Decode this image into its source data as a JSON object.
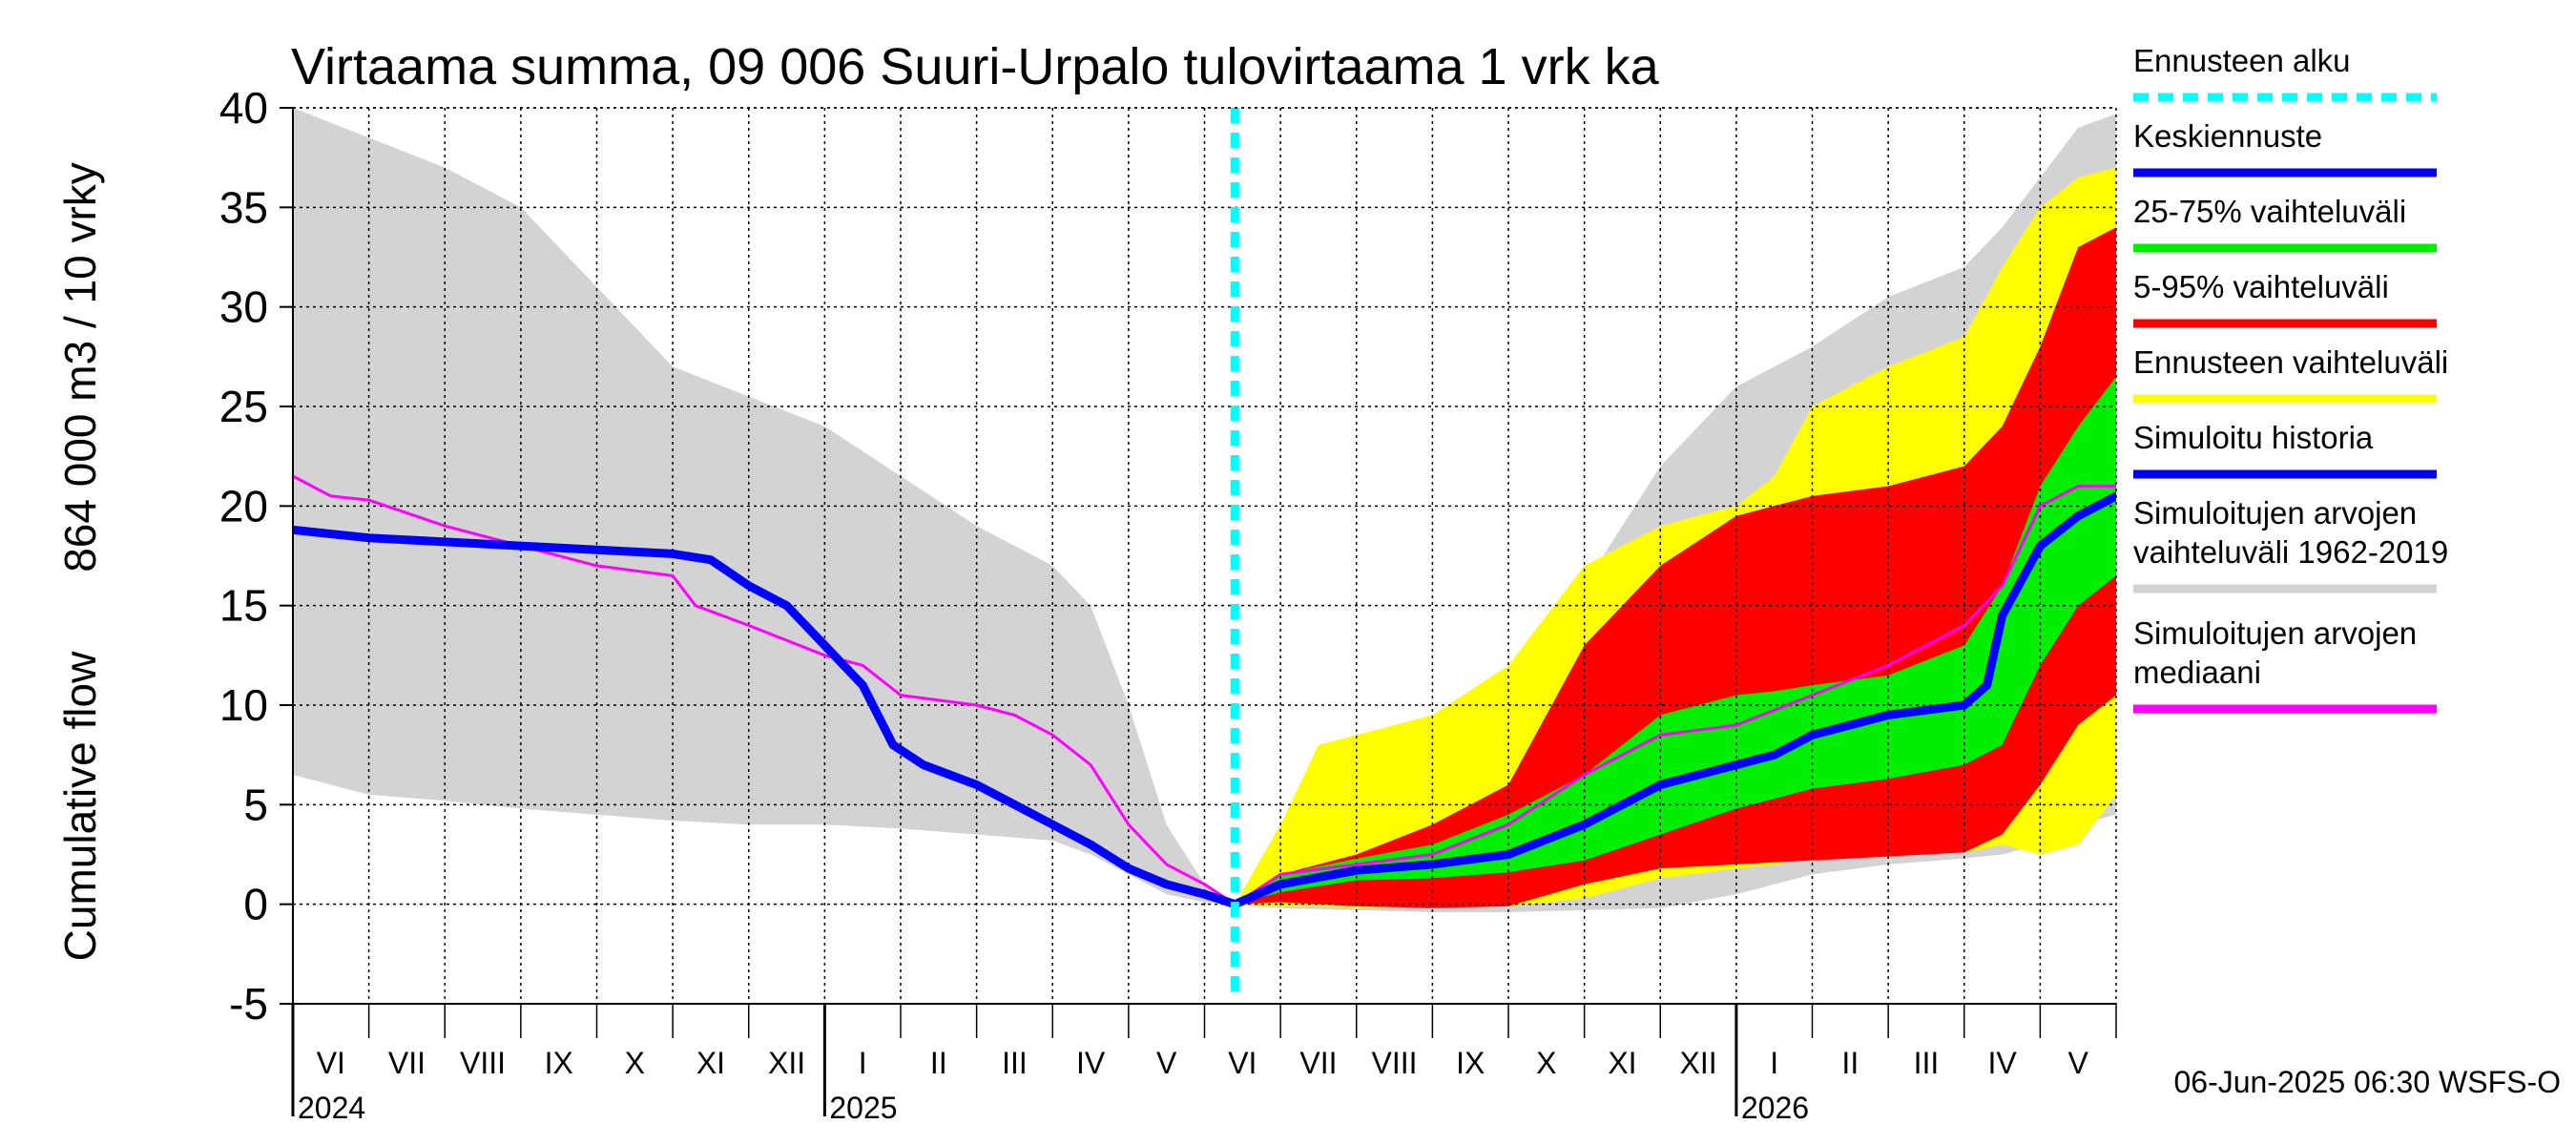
{
  "chart_data": {
    "type": "area",
    "title": "Virtaama summa, 09 006 Suuri-Urpalo tulovirtaama 1 vrk ka",
    "ylabel_line1": "Cumulative flow",
    "ylabel_line2": "864 000 m3 / 10 vrky",
    "ylim": [
      -5,
      40
    ],
    "yticks": [
      "-5",
      "0",
      "5",
      "10",
      "15",
      "20",
      "25",
      "30",
      "35",
      "40"
    ],
    "ytick_values": [
      -5,
      0,
      5,
      10,
      15,
      20,
      25,
      30,
      35,
      40
    ],
    "xlim": [
      0,
      24
    ],
    "forecast_start": 12.4,
    "months": [
      "VI",
      "VII",
      "VIII",
      "IX",
      "X",
      "XI",
      "XII",
      "I",
      "II",
      "III",
      "IV",
      "V",
      "VI",
      "VII",
      "VIII",
      "IX",
      "X",
      "XI",
      "XII",
      "I",
      "II",
      "III",
      "IV",
      "V"
    ],
    "years": [
      {
        "label": "2024",
        "x": 0
      },
      {
        "label": "2025",
        "x": 7
      },
      {
        "label": "2026",
        "x": 19
      }
    ],
    "grid": true,
    "legend_position": "right",
    "series": [
      {
        "name": "Simuloitujen arvojen vaihteluväli 1962-2019",
        "kind": "band",
        "color": "#d3d3d3",
        "x": [
          0,
          1,
          2,
          3,
          4,
          5,
          6,
          7,
          8,
          9,
          10,
          10.5,
          11,
          11.5,
          12,
          12.4,
          13,
          14,
          15,
          16,
          17,
          18,
          19,
          20,
          21,
          22,
          22.5,
          23,
          23.5,
          24
        ],
        "upper": [
          40,
          38.5,
          37,
          35,
          31,
          27,
          25.5,
          24,
          21.5,
          19,
          17,
          15,
          10,
          4,
          1,
          0,
          4,
          7.5,
          9,
          10.5,
          16,
          22,
          26,
          28,
          30.5,
          32,
          34,
          36.5,
          39,
          39.7
        ],
        "lower": [
          6.5,
          5.5,
          5.2,
          4.8,
          4.5,
          4.2,
          4,
          4,
          3.8,
          3.5,
          3.2,
          2.5,
          1.5,
          0.5,
          0.1,
          0,
          -0.2,
          -0.3,
          -0.4,
          -0.4,
          -0.3,
          -0.2,
          0.5,
          1.5,
          2,
          2.3,
          2.5,
          3,
          4,
          4.5
        ]
      },
      {
        "name": "Ennusteen vaihteluväli",
        "kind": "band",
        "color": "#ffff00",
        "x": [
          12.4,
          13,
          13.5,
          14,
          15,
          16,
          17,
          18,
          19,
          19.5,
          20,
          21,
          22,
          22.5,
          23,
          23.5,
          24
        ],
        "upper": [
          0,
          4,
          8,
          8.5,
          9.5,
          12,
          17,
          19,
          20,
          21.5,
          25,
          27,
          28.5,
          32,
          35,
          36.5,
          37
        ],
        "lower": [
          0,
          -0.1,
          -0.1,
          -0.2,
          -0.2,
          -0.1,
          0.3,
          1.3,
          1.8,
          2,
          2.3,
          2.6,
          2.6,
          3,
          2.5,
          3,
          5.5
        ]
      },
      {
        "name": "5-95% vaihteluväli",
        "kind": "band",
        "color": "#ff0000",
        "x": [
          12.4,
          13,
          14,
          15,
          16,
          17,
          18,
          19,
          19.5,
          20,
          21,
          22,
          22.5,
          23,
          23.5,
          24
        ],
        "upper": [
          0,
          1.5,
          2.5,
          4,
          6,
          13,
          17,
          19.5,
          20,
          20.5,
          21,
          22,
          24,
          28,
          33,
          34
        ],
        "lower": [
          0,
          0.1,
          -0.1,
          -0.2,
          -0.1,
          1,
          1.8,
          2,
          2.1,
          2.2,
          2.4,
          2.6,
          3.5,
          6,
          9,
          10.5
        ]
      },
      {
        "name": "25-75% vaihteluväli",
        "kind": "band",
        "color": "#00ee00",
        "x": [
          12.4,
          13,
          14,
          15,
          16,
          17,
          18,
          19,
          19.5,
          20,
          21,
          22,
          22.5,
          23,
          23.5,
          24
        ],
        "upper": [
          0,
          1.5,
          2.3,
          3,
          4.5,
          6.5,
          9.5,
          10.5,
          10.7,
          11,
          11.5,
          13,
          16,
          21,
          24,
          26.5
        ],
        "lower": [
          0,
          0.6,
          1.2,
          1.3,
          1.6,
          2.2,
          3.5,
          4.8,
          5.3,
          5.8,
          6.3,
          7,
          8,
          12,
          15,
          16.5
        ]
      },
      {
        "name": "Simuloitujen arvojen mediaani",
        "kind": "line",
        "color": "#ff00ff",
        "width": 3,
        "x": [
          0,
          0.5,
          1,
          2,
          3,
          4,
          5,
          5.3,
          6,
          7,
          7.5,
          8,
          9,
          9.5,
          10,
          10.5,
          11,
          11.5,
          12,
          12.4,
          13,
          14,
          15,
          16,
          17,
          18,
          19,
          20,
          21,
          22,
          22.5,
          23,
          23.5,
          24
        ],
        "y": [
          21.5,
          20.5,
          20.3,
          19,
          18,
          17,
          16.5,
          15,
          14,
          12.5,
          12,
          10.5,
          10,
          9.5,
          8.5,
          7,
          4,
          2,
          1,
          0,
          1.5,
          2,
          2.5,
          4,
          6.5,
          8.5,
          9,
          10.5,
          12,
          14,
          16,
          20,
          21,
          21
        ]
      },
      {
        "name": "Simuloitu historia",
        "kind": "line",
        "color": "#0000ff",
        "width": 9,
        "x": [
          0,
          1,
          2,
          3,
          4,
          5,
          5.5,
          6,
          6.5,
          7,
          7.5,
          7.9,
          8.3,
          9,
          9.5,
          10,
          10.5,
          11,
          11.5,
          12,
          12.4
        ],
        "y": [
          18.8,
          18.4,
          18.2,
          18,
          17.8,
          17.6,
          17.3,
          16,
          15,
          13,
          11,
          8,
          7,
          6,
          5,
          4,
          3,
          1.8,
          1,
          0.5,
          0
        ]
      },
      {
        "name": "Keskiennuste",
        "kind": "line",
        "color": "#0000ff",
        "width": 9,
        "x": [
          12.4,
          13,
          14,
          15,
          16,
          17,
          18,
          19,
          19.5,
          20,
          21,
          22,
          22.3,
          22.5,
          23,
          23.5,
          24
        ],
        "y": [
          0,
          1,
          1.7,
          2,
          2.5,
          4,
          6,
          7,
          7.5,
          8.5,
          9.5,
          10,
          11,
          14.5,
          18,
          19.5,
          20.5
        ]
      },
      {
        "name": "Ennusteen alku",
        "kind": "vline",
        "color": "#00ffff"
      }
    ],
    "legend": [
      {
        "label": "Ennusteen alku",
        "color": "#00ffff",
        "style": "dashed"
      },
      {
        "label": "Keskiennuste",
        "color": "#0000ff",
        "style": "solid"
      },
      {
        "label": "25-75% vaihteluväli",
        "color": "#00ee00",
        "style": "solid"
      },
      {
        "label": "5-95% vaihteluväli",
        "color": "#ff0000",
        "style": "solid"
      },
      {
        "label": "Ennusteen vaihteluväli",
        "color": "#ffff00",
        "style": "solid"
      },
      {
        "label": "Simuloitu historia",
        "color": "#0000ff",
        "style": "solid"
      },
      {
        "label": "Simuloitujen arvojen vaihteluväli 1962-2019",
        "label_lines": [
          "Simuloitujen arvojen",
          "vaihteluväli 1962-2019"
        ],
        "color": "#d3d3d3",
        "style": "solid"
      },
      {
        "label": "Simuloitujen arvojen mediaani",
        "label_lines": [
          "Simuloitujen arvojen",
          "mediaani"
        ],
        "color": "#ff00ff",
        "style": "solid"
      }
    ]
  },
  "footer": "06-Jun-2025 06:30 WSFS-O"
}
